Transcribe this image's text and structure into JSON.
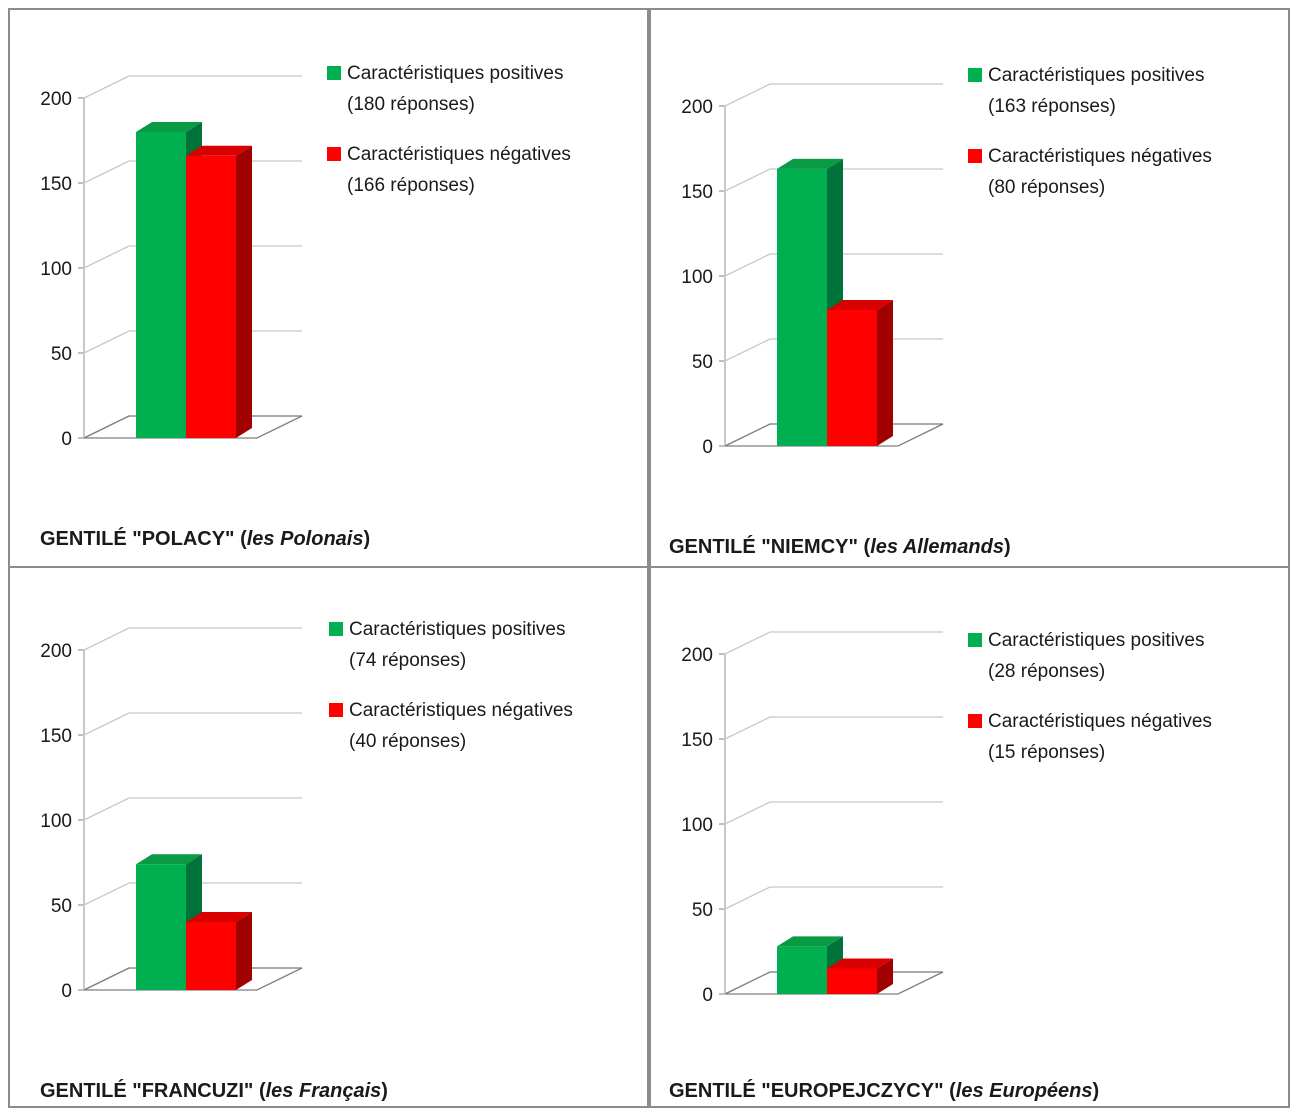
{
  "colors": {
    "positive": "#00b050",
    "positive_top": "#0a9a43",
    "positive_side": "#00733a",
    "negative": "#ff0000",
    "negative_top": "#d80000",
    "negative_side": "#a00000",
    "grid": "#c8c8c8",
    "axis": "#7f7f7f",
    "text": "#1a1a1a",
    "border": "#8c8c8c"
  },
  "chart_data": [
    {
      "type": "bar",
      "title_prefix": "GENTILÉ \"POLACY\" (",
      "title_italic": "les Polonais",
      "title_suffix": ")",
      "ylim": [
        0,
        200
      ],
      "yticks": [
        "0",
        "50",
        "100",
        "150",
        "200"
      ],
      "series": [
        {
          "name": "Caractéristiques positives",
          "count_label": "(180 réponses)",
          "value": 180
        },
        {
          "name": "Caractéristiques négatives",
          "count_label": "(166 réponses)",
          "value": 166
        }
      ]
    },
    {
      "type": "bar",
      "title_prefix": "GENTILÉ \"NIEMCY\"  (",
      "title_italic": "les Allemands",
      "title_suffix": ")",
      "ylim": [
        0,
        200
      ],
      "yticks": [
        "0",
        "50",
        "100",
        "150",
        "200"
      ],
      "series": [
        {
          "name": "Caractéristiques positives",
          "count_label": "(163 réponses)",
          "value": 163
        },
        {
          "name": "Caractéristiques négatives",
          "count_label": "(80 réponses)",
          "value": 80
        }
      ]
    },
    {
      "type": "bar",
      "title_prefix": "GENTILÉ \"FRANCUZI\" (",
      "title_italic": "les Français",
      "title_suffix": ")",
      "ylim": [
        0,
        200
      ],
      "yticks": [
        "0",
        "50",
        "100",
        "150",
        "200"
      ],
      "series": [
        {
          "name": "Caractéristiques positives",
          "count_label": "(74 réponses)",
          "value": 74
        },
        {
          "name": "Caractéristiques négatives",
          "count_label": "(40 réponses)",
          "value": 40
        }
      ]
    },
    {
      "type": "bar",
      "title_prefix": "GENTILÉ \"EUROPEJCZYCY\" (",
      "title_italic": "les Européens",
      "title_suffix": ")",
      "ylim": [
        0,
        200
      ],
      "yticks": [
        "0",
        "50",
        "100",
        "150",
        "200"
      ],
      "series": [
        {
          "name": "Caractéristiques positives",
          "count_label": "(28 réponses)",
          "value": 28
        },
        {
          "name": "Caractéristiques négatives",
          "count_label": "(15 réponses)",
          "value": 15
        }
      ]
    }
  ]
}
